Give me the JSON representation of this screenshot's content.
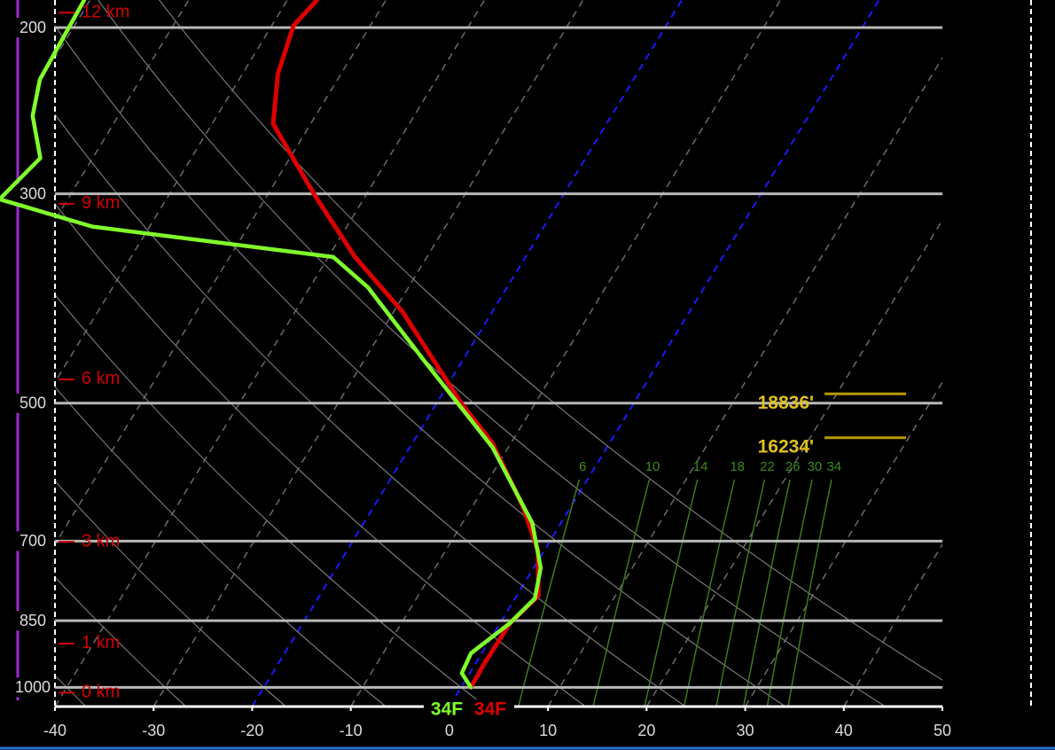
{
  "chart_data": {
    "type": "skewt",
    "xlim": [
      -40,
      50
    ],
    "xticks": [
      -40,
      -30,
      -20,
      -10,
      0,
      10,
      20,
      30,
      40,
      50
    ],
    "ylim": [
      1048,
      187
    ],
    "yticks": [
      200,
      300,
      500,
      700,
      850,
      1000
    ],
    "log_scale": true,
    "highlight_isotherms": [
      -20,
      0
    ],
    "series": [
      {
        "color": "#dd0000",
        "pressure": [
          1000,
          947,
          855,
          800,
          717,
          643,
          551,
          500,
          400,
          350,
          301,
          253,
          224,
          199,
          187
        ],
        "values": [
          1,
          0.9,
          1.0,
          2.2,
          -0.6,
          -4.9,
          -11.9,
          -17.5,
          -29.1,
          -37.3,
          -45.2,
          -53.8,
          -56.4,
          -57.8,
          -57
        ]
      },
      {
        "color": "#80ff2a",
        "pressure": [
          1000,
          966,
          920,
          855,
          805,
          747,
          670,
          557,
          453,
          377,
          350,
          325,
          304,
          275,
          248,
          227,
          187
        ],
        "values": [
          1,
          -0.8,
          -1.1,
          1.0,
          2,
          0.7,
          -2.9,
          -11.6,
          -23.6,
          -34.1,
          -39.5,
          -65.8,
          -76.9,
          -75.3,
          -78.7,
          -80.2,
          -80.6
        ]
      }
    ],
    "mixing_ratios": [
      6,
      10,
      14,
      18,
      22,
      26,
      30,
      34
    ],
    "height_labels": [
      {
        "value": 12,
        "label": "12 km"
      },
      {
        "value": 9,
        "label": "9 km"
      },
      {
        "value": 6,
        "label": "6 km"
      },
      {
        "value": 3,
        "label": "3 km"
      },
      {
        "value": 1,
        "label": "1 km"
      },
      {
        "value": 0,
        "label": "0 km"
      }
    ],
    "level_labels": [
      {
        "value": 18836,
        "label": "18836'"
      },
      {
        "value": 16234,
        "label": "16234'"
      }
    ],
    "surface_dewpoint_label": "34F",
    "surface_temperature_label": "34F"
  }
}
